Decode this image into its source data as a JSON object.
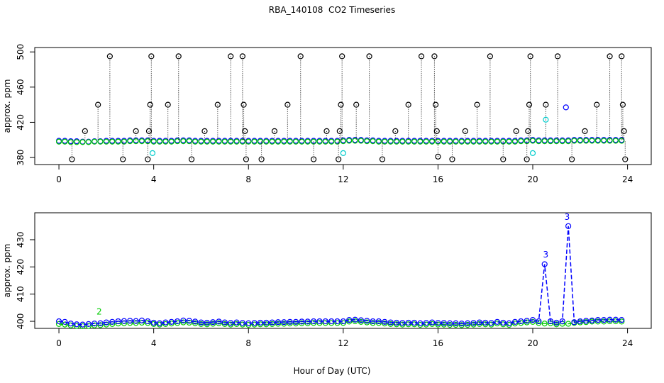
{
  "chart_data": [
    {
      "type": "scatter",
      "title": "RBA_140108  CO2 Timeseries",
      "ylabel": "approx. ppm",
      "xlim": [
        -1.02,
        25.0
      ],
      "ylim": [
        372,
        505
      ],
      "xticks": [
        0,
        4,
        8,
        12,
        16,
        20,
        24
      ],
      "yticks": [
        380,
        420,
        460,
        500
      ],
      "x": [
        0,
        0.25,
        0.5,
        0.75,
        1,
        1.25,
        1.5,
        1.75,
        2,
        2.25,
        2.5,
        2.75,
        3,
        3.25,
        3.5,
        3.75,
        4,
        4.25,
        4.5,
        4.75,
        5,
        5.25,
        5.5,
        5.75,
        6,
        6.25,
        6.5,
        6.75,
        7,
        7.25,
        7.5,
        7.75,
        8,
        8.25,
        8.5,
        8.75,
        9,
        9.25,
        9.5,
        9.75,
        10,
        10.25,
        10.5,
        10.75,
        11,
        11.25,
        11.5,
        11.75,
        12,
        12.25,
        12.5,
        12.75,
        13,
        13.25,
        13.5,
        13.75,
        14,
        14.25,
        14.5,
        14.75,
        15,
        15.25,
        15.5,
        15.75,
        16,
        16.25,
        16.5,
        16.75,
        17,
        17.25,
        17.5,
        17.75,
        18,
        18.25,
        18.5,
        18.75,
        19,
        19.25,
        19.5,
        19.75,
        20,
        20.25,
        20.5,
        20.75,
        21,
        21.25,
        21.5,
        21.75,
        22,
        22.25,
        22.5,
        22.75,
        23,
        23.25,
        23.5,
        23.75
      ],
      "series": [
        {
          "color": "#0000ff",
          "style": "points",
          "values": [
            399,
            399,
            398.5,
            398.5,
            398,
            398,
            398.5,
            398.5,
            399,
            399,
            399,
            399,
            399.5,
            399.5,
            399.5,
            399.5,
            399,
            399,
            399,
            399,
            399.5,
            399.5,
            399.5,
            399,
            399,
            399,
            399,
            399,
            399,
            399,
            399,
            399,
            399,
            399,
            399,
            399,
            399,
            399,
            399,
            399,
            399,
            399,
            399,
            399,
            399,
            399,
            399,
            399,
            399.5,
            400,
            400,
            400,
            399.5,
            399.5,
            399,
            399,
            399,
            399,
            399,
            399,
            399,
            399,
            399,
            399,
            399,
            399,
            399,
            399,
            399,
            399,
            399,
            399,
            399,
            399,
            399,
            399,
            399,
            399,
            399.5,
            399.5,
            400,
            399.5,
            399.5,
            399.5,
            399.5,
            399.5,
            399.5,
            400,
            400,
            400,
            400,
            400,
            400,
            400,
            400,
            400
          ]
        },
        {
          "color": "#00cc00",
          "style": "points",
          "values": [
            398,
            398,
            397.5,
            397.5,
            397.5,
            397.5,
            398,
            398,
            398,
            398,
            398,
            398,
            398.5,
            398.5,
            398.5,
            398.5,
            398,
            398,
            398,
            398,
            398.5,
            398.5,
            398.5,
            398,
            398,
            398,
            398,
            398,
            398,
            398,
            398,
            398,
            398,
            398,
            398,
            398,
            398,
            398,
            398,
            398,
            398,
            398,
            398,
            398,
            398,
            398,
            398,
            398,
            398.5,
            399,
            399,
            399,
            398.5,
            398.5,
            398,
            398,
            398,
            398,
            398,
            398,
            398,
            398,
            398,
            398,
            398,
            398,
            398,
            398,
            398,
            398,
            398,
            398,
            398,
            398,
            398,
            398,
            398,
            398,
            398.5,
            398.5,
            399,
            398.5,
            398.5,
            398.5,
            398.5,
            398.5,
            398.5,
            399,
            399,
            399,
            399,
            399,
            399,
            399,
            399,
            399
          ]
        },
        {
          "color": "#000000",
          "style": "spikes",
          "x": [
            0.55,
            1.1,
            1.65,
            2.15,
            2.7,
            3.25,
            3.75,
            3.8,
            3.85,
            3.9,
            4.6,
            5.05,
            5.6,
            6.15,
            6.7,
            7.25,
            7.75,
            7.8,
            7.85,
            7.9,
            8.55,
            9.1,
            9.65,
            10.2,
            10.75,
            11.3,
            11.8,
            11.85,
            11.9,
            11.95,
            12.55,
            13.1,
            13.65,
            14.2,
            14.75,
            15.3,
            15.85,
            15.9,
            15.95,
            16.0,
            16.6,
            17.15,
            17.65,
            18.2,
            18.75,
            19.3,
            19.75,
            19.8,
            19.85,
            19.9,
            20.55,
            21.05,
            21.65,
            22.2,
            22.7,
            23.25,
            23.75,
            23.8,
            23.85,
            23.9
          ],
          "values": [
            378,
            410,
            440,
            495,
            378,
            410,
            378,
            410,
            440,
            495,
            440,
            495,
            378,
            410,
            440,
            495,
            495,
            440,
            410,
            378,
            378,
            410,
            440,
            495,
            378,
            410,
            378,
            410,
            440,
            495,
            440,
            495,
            378,
            410,
            440,
            495,
            495,
            440,
            410,
            381,
            378,
            410,
            440,
            495,
            378,
            410,
            378,
            410,
            440,
            495,
            440,
            495,
            378,
            410,
            440,
            495,
            495,
            440,
            410,
            378
          ]
        },
        {
          "color": "#00cccc",
          "style": "points",
          "x": [
            3.95,
            12.0,
            20.0,
            20.55
          ],
          "values": [
            385,
            385,
            385,
            423
          ]
        },
        {
          "color": "#0000ff",
          "style": "points",
          "x": [
            21.4
          ],
          "values": [
            437
          ]
        }
      ]
    },
    {
      "type": "line",
      "ylabel": "approx. ppm",
      "xlabel": "Hour of Day (UTC)",
      "xlim": [
        -1.02,
        25.0
      ],
      "ylim": [
        397.4,
        439.9
      ],
      "xticks": [
        0,
        4,
        8,
        12,
        16,
        20,
        24
      ],
      "yticks": [
        400,
        410,
        420,
        430
      ],
      "x": [
        0,
        0.25,
        0.5,
        0.75,
        1,
        1.25,
        1.5,
        1.75,
        2,
        2.25,
        2.5,
        2.75,
        3,
        3.25,
        3.5,
        3.75,
        4,
        4.25,
        4.5,
        4.75,
        5,
        5.25,
        5.5,
        5.75,
        6,
        6.25,
        6.5,
        6.75,
        7,
        7.25,
        7.5,
        7.75,
        8,
        8.25,
        8.5,
        8.75,
        9,
        9.25,
        9.5,
        9.75,
        10,
        10.25,
        10.5,
        10.75,
        11,
        11.25,
        11.5,
        11.75,
        12,
        12.25,
        12.5,
        12.75,
        13,
        13.25,
        13.5,
        13.75,
        14,
        14.25,
        14.5,
        14.75,
        15,
        15.25,
        15.5,
        15.75,
        16,
        16.25,
        16.5,
        16.75,
        17,
        17.25,
        17.5,
        17.75,
        18,
        18.25,
        18.5,
        18.75,
        19,
        19.25,
        19.5,
        19.75,
        20,
        20.25,
        20.5,
        20.75,
        21,
        21.25,
        21.5,
        21.75,
        22,
        22.25,
        22.5,
        22.75,
        23,
        23.25,
        23.5,
        23.75
      ],
      "series": [
        {
          "color": "#00cc00",
          "style": "line",
          "values": [
            399,
            398.8,
            398.5,
            398.3,
            398.2,
            398.3,
            398.5,
            398.6,
            398.8,
            399,
            399.2,
            399.3,
            399.4,
            399.4,
            399.5,
            399.4,
            399,
            398.8,
            399,
            399.2,
            399.4,
            399.6,
            399.5,
            399.3,
            399,
            398.9,
            399.1,
            399.3,
            399,
            398.8,
            399,
            398.8,
            398.7,
            398.8,
            398.9,
            398.9,
            399,
            399.1,
            399.1,
            399.2,
            399.2,
            399.3,
            399.3,
            399.4,
            399.4,
            399.4,
            399.4,
            399.4,
            399.4,
            399.9,
            400,
            399.8,
            399.6,
            399.4,
            399.4,
            399.2,
            399,
            398.9,
            398.8,
            398.9,
            398.9,
            398.7,
            398.8,
            399,
            398.8,
            398.8,
            398.7,
            398.7,
            398.6,
            398.7,
            398.8,
            399,
            398.9,
            398.8,
            399.2,
            398.9,
            398.7,
            399.2,
            399.4,
            399.6,
            399.8,
            399.4,
            399.2,
            399.3,
            398.9,
            399.1,
            399.1,
            399.4,
            399.6,
            399.7,
            399.9,
            399.9,
            399.9,
            400,
            400,
            399.9
          ]
        },
        {
          "color": "#0000ff",
          "style": "line",
          "values": [
            400,
            399.8,
            399.2,
            398.9,
            398.8,
            399,
            399.2,
            399.3,
            399.6,
            399.8,
            400,
            400.1,
            400.2,
            400.1,
            400.3,
            400,
            399.5,
            399.3,
            399.6,
            399.8,
            400,
            400.3,
            400.2,
            399.9,
            399.6,
            399.5,
            399.7,
            399.9,
            399.6,
            399.4,
            399.6,
            399.4,
            399.3,
            399.4,
            399.5,
            399.5,
            399.6,
            399.7,
            399.7,
            399.8,
            399.8,
            399.9,
            399.9,
            400,
            400,
            400,
            400,
            400,
            400,
            400.5,
            400.6,
            400.4,
            400.2,
            400,
            400,
            399.8,
            399.6,
            399.5,
            399.4,
            399.5,
            399.5,
            399.3,
            399.4,
            399.6,
            399.4,
            399.4,
            399.3,
            399.3,
            399.2,
            399.3,
            399.4,
            399.6,
            399.5,
            399.4,
            399.8,
            399.5,
            399.3,
            399.8,
            400,
            400.2,
            400.5,
            400,
            421,
            400,
            399.5,
            400,
            435,
            399.7,
            400,
            400.2,
            400.3,
            400.5,
            400.5,
            400.6,
            400.6,
            400.5
          ]
        }
      ],
      "annotations": [
        {
          "text": "2",
          "x": 1.7,
          "y": 402.5,
          "color": "#00cc00"
        },
        {
          "text": "3",
          "x": 20.55,
          "y": 423.5,
          "color": "#0000ff"
        },
        {
          "text": "3",
          "x": 21.45,
          "y": 437.3,
          "color": "#0000ff"
        }
      ]
    }
  ]
}
